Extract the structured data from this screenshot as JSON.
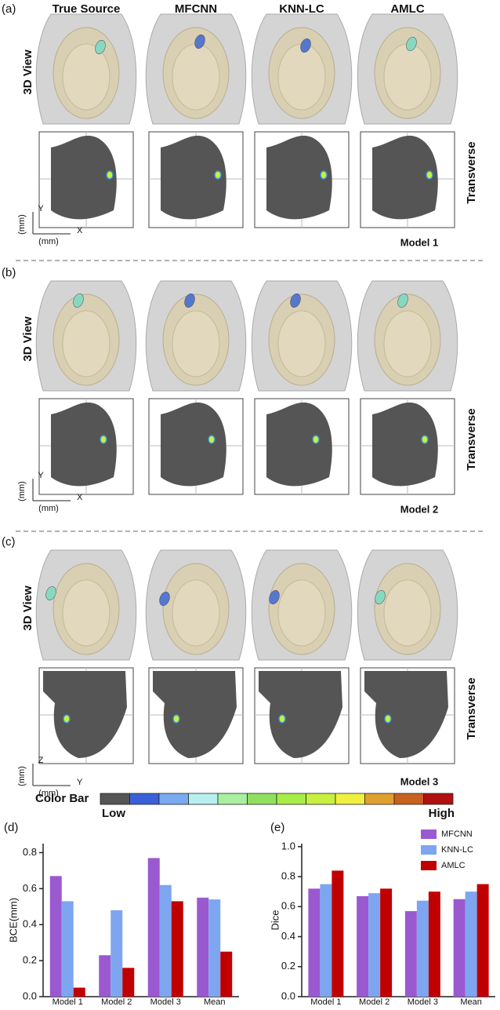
{
  "header": {
    "columns": [
      "True Source",
      "MFCNN",
      "KNN-LC",
      "AMLC"
    ]
  },
  "panels": [
    {
      "label": "(a)",
      "row_labels": [
        "3D View",
        "Transverse"
      ],
      "model": "Model 1",
      "axes": [
        "Y",
        "X",
        "(mm)",
        "(mm)"
      ]
    },
    {
      "label": "(b)",
      "row_labels": [
        "3D View",
        "Transverse"
      ],
      "model": "Model 2",
      "axes": [
        "Y",
        "X",
        "(mm)",
        "(mm)"
      ]
    },
    {
      "label": "(c)",
      "row_labels": [
        "3D View",
        "Transverse"
      ],
      "model": "Model 3",
      "axes": [
        "Z",
        "Y",
        "(mm)",
        "(mm)"
      ]
    }
  ],
  "color_bar": {
    "title": "Color Bar",
    "low": "Low",
    "high": "High",
    "colors": [
      "#555555",
      "#3a5fd9",
      "#7aaaf0",
      "#b8f0f0",
      "#a8f0a0",
      "#90e060",
      "#a8ec48",
      "#c8f040",
      "#f0f040",
      "#e0a030",
      "#c86020",
      "#b01010"
    ]
  },
  "chart_data": [
    {
      "type": "bar",
      "title": "(d)",
      "y_label": "BCE(mm)",
      "categories": [
        "Model 1",
        "Model 2",
        "Model 3",
        "Mean"
      ],
      "series": [
        {
          "name": "MFCNN",
          "color": "#9b59d0",
          "values": [
            0.67,
            0.23,
            0.77,
            0.55
          ]
        },
        {
          "name": "KNN-LC",
          "color": "#7ea6f0",
          "values": [
            0.53,
            0.48,
            0.62,
            0.54
          ]
        },
        {
          "name": "AMLC",
          "color": "#c00000",
          "values": [
            0.05,
            0.16,
            0.53,
            0.25
          ]
        }
      ],
      "ylim": [
        0,
        0.85
      ],
      "yticks": [
        {
          "value": 0,
          "label": "0.0"
        },
        0.2,
        0.4,
        0.6,
        0.8
      ],
      "legend": false
    },
    {
      "type": "bar",
      "title": "(e)",
      "y_label": "Dice",
      "categories": [
        "Model 1",
        "Model 2",
        "Model 3",
        "Mean"
      ],
      "series": [
        {
          "name": "MFCNN",
          "color": "#9b59d0",
          "values": [
            0.72,
            0.67,
            0.57,
            0.65
          ]
        },
        {
          "name": "KNN-LC",
          "color": "#7ea6f0",
          "values": [
            0.75,
            0.69,
            0.64,
            0.7
          ]
        },
        {
          "name": "AMLC",
          "color": "#c00000",
          "values": [
            0.84,
            0.72,
            0.7,
            0.75
          ]
        }
      ],
      "ylim": [
        0,
        1.02
      ],
      "yticks": [
        {
          "value": 0,
          "label": "0.0"
        },
        0.2,
        0.4,
        0.6,
        0.8,
        {
          "value": 1,
          "label": "1.0"
        }
      ],
      "legend": "top-right"
    }
  ]
}
